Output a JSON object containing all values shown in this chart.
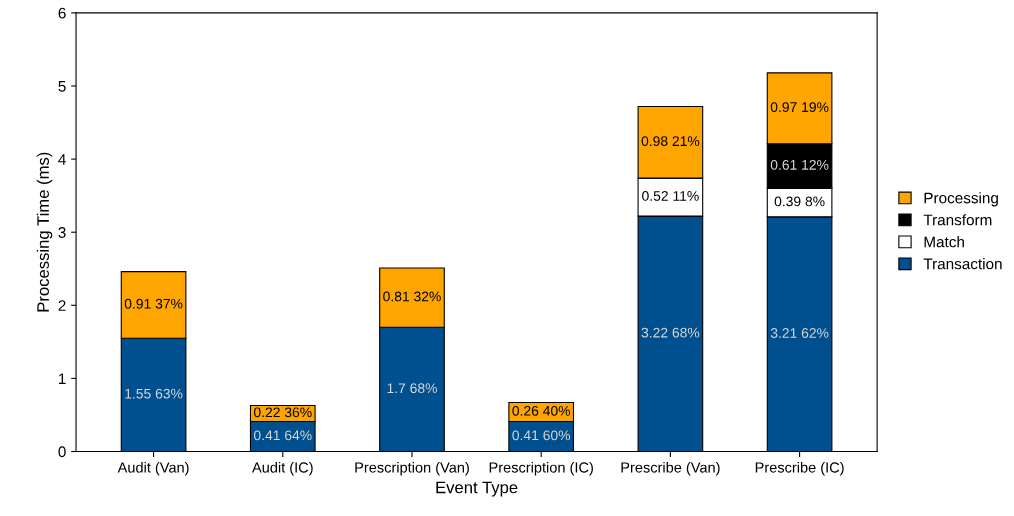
{
  "chart_data": {
    "type": "bar",
    "stacked": true,
    "xlabel": "Event Type",
    "ylabel": "Processing Time (ms)",
    "categories": [
      "Audit (Van)",
      "Audit (IC)",
      "Prescription (Van)",
      "Prescription (IC)",
      "Prescribe (Van)",
      "Prescribe (IC)"
    ],
    "series": [
      {
        "name": "Transaction",
        "color": "#004f8e",
        "values": [
          1.55,
          0.41,
          1.7,
          0.41,
          3.22,
          3.21
        ],
        "value_labels": [
          "1.55 63%",
          "0.41 64%",
          "1.7 68%",
          "0.41 60%",
          "3.22 68%",
          "3.21 62%"
        ]
      },
      {
        "name": "Match",
        "color": "#ffffff",
        "values": [
          null,
          null,
          null,
          null,
          0.52,
          0.39
        ],
        "value_labels": [
          null,
          null,
          null,
          null,
          "0.52 11%",
          "0.39 8%"
        ]
      },
      {
        "name": "Transform",
        "color": "#000000",
        "values": [
          null,
          null,
          null,
          null,
          null,
          0.61
        ],
        "value_labels": [
          null,
          null,
          null,
          null,
          null,
          "0.61 12%"
        ]
      },
      {
        "name": "Processing",
        "color": "#ffa500",
        "values": [
          0.91,
          0.22,
          0.81,
          0.26,
          0.98,
          0.97
        ],
        "value_labels": [
          "0.91 37%",
          "0.22 36%",
          "0.81 32%",
          "0.26 40%",
          "0.98 21%",
          "0.97 19%"
        ]
      }
    ],
    "ylim": [
      0,
      6
    ],
    "yticks": [
      0,
      1,
      2,
      3,
      4,
      5,
      6
    ],
    "grid": false,
    "legend": "right"
  }
}
